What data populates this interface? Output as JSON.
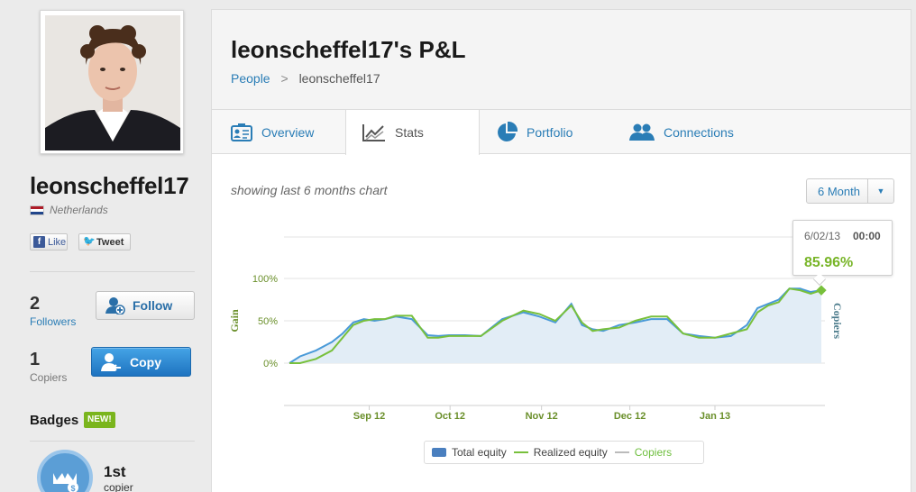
{
  "profile": {
    "username": "leonscheffel17",
    "country": "Netherlands",
    "social": {
      "like_label": "Like",
      "tweet_label": "Tweet"
    },
    "followers": {
      "count": "2",
      "label": "Followers"
    },
    "copiers": {
      "count": "1",
      "label": "Copiers"
    },
    "follow_label": "Follow",
    "copy_label": "Copy",
    "badges": {
      "title": "Badges",
      "new_label": "NEW!",
      "rank": "1st",
      "rank_label": "copier"
    }
  },
  "header": {
    "title": "leonscheffel17's P&L",
    "breadcrumb": {
      "root": "People",
      "separator": ">",
      "current": "leonscheffel17"
    }
  },
  "tabs": [
    {
      "label": "Overview",
      "icon": "overview-icon"
    },
    {
      "label": "Stats",
      "icon": "stats-icon",
      "active": true
    },
    {
      "label": "Portfolio",
      "icon": "portfolio-icon"
    },
    {
      "label": "Connections",
      "icon": "connections-icon"
    }
  ],
  "stats": {
    "showing_text": "showing last 6 months chart",
    "range_selected": "6 Month",
    "tooltip": {
      "date": "6/02/13",
      "time": "00:00",
      "value": "85.96%"
    }
  },
  "colors": {
    "accent": "#2a7db6",
    "total_equity": "#4a9ad8",
    "realized_equity": "#78c03c",
    "copy_button": "#2d86cf"
  },
  "chart_data": {
    "type": "line",
    "ylabel": "Gain",
    "y2label": "Copiers",
    "ylim": [
      0,
      120
    ],
    "yticks": [
      "0%",
      "50%",
      "100%"
    ],
    "xticks": [
      "Sep 12",
      "Oct 12",
      "Nov 12",
      "Dec 12",
      "Jan 13"
    ],
    "xtick_positions": [
      0.15,
      0.302,
      0.474,
      0.64,
      0.8
    ],
    "x": [
      0,
      0.02,
      0.05,
      0.08,
      0.1,
      0.12,
      0.14,
      0.16,
      0.18,
      0.2,
      0.23,
      0.26,
      0.28,
      0.3,
      0.33,
      0.36,
      0.4,
      0.44,
      0.47,
      0.5,
      0.53,
      0.55,
      0.57,
      0.59,
      0.62,
      0.65,
      0.68,
      0.71,
      0.74,
      0.77,
      0.8,
      0.83,
      0.86,
      0.88,
      0.9,
      0.92,
      0.94,
      0.96,
      0.98,
      1
    ],
    "series": [
      {
        "name": "Total equity",
        "values": [
          0,
          8,
          15,
          25,
          35,
          48,
          52,
          50,
          52,
          55,
          52,
          33,
          32,
          33,
          33,
          32,
          52,
          60,
          55,
          48,
          70,
          45,
          40,
          38,
          45,
          48,
          52,
          52,
          35,
          32,
          30,
          32,
          45,
          65,
          70,
          75,
          88,
          88,
          84,
          86
        ]
      },
      {
        "name": "Realized equity",
        "values": [
          0,
          0,
          5,
          15,
          30,
          45,
          50,
          52,
          52,
          56,
          56,
          30,
          30,
          32,
          32,
          32,
          50,
          62,
          58,
          50,
          68,
          48,
          38,
          40,
          42,
          50,
          55,
          55,
          35,
          30,
          30,
          35,
          40,
          60,
          68,
          72,
          88,
          86,
          82,
          86
        ]
      }
    ],
    "legend": [
      {
        "label": "Total equity",
        "color": "#4a7fbf"
      },
      {
        "label": "Realized equity",
        "color": "#78c03c"
      },
      {
        "label": "Copiers",
        "color": "#bbbbbb"
      }
    ],
    "grid": true
  }
}
